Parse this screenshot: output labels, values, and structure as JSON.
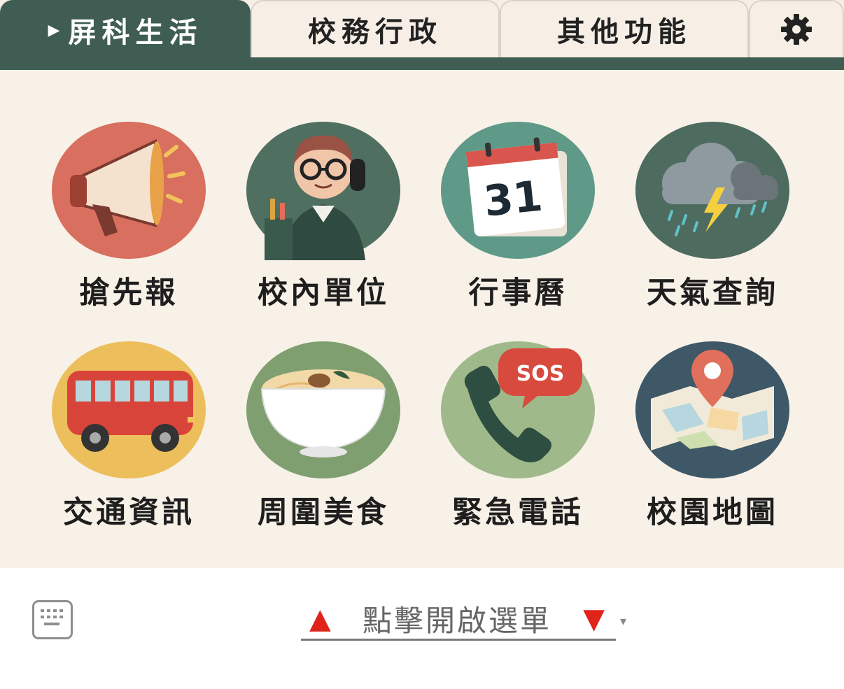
{
  "tabs": [
    {
      "label": "屏科生活",
      "active": true
    },
    {
      "label": "校務行政",
      "active": false
    },
    {
      "label": "其他功能",
      "active": false
    }
  ],
  "settings_icon": "gear-icon",
  "grid": [
    {
      "label": "搶先報",
      "icon": "megaphone-icon",
      "bg": "#d86f5f"
    },
    {
      "label": "校內單位",
      "icon": "receptionist-icon",
      "bg": "#4f6f60"
    },
    {
      "label": "行事曆",
      "icon": "calendar-icon",
      "bg": "#5f9a88"
    },
    {
      "label": "天氣查詢",
      "icon": "storm-cloud-icon",
      "bg": "#4e6b60"
    },
    {
      "label": "交通資訊",
      "icon": "bus-icon",
      "bg": "#ecbe5c"
    },
    {
      "label": "周圍美食",
      "icon": "noodle-bowl-icon",
      "bg": "#7f9f70"
    },
    {
      "label": "緊急電話",
      "icon": "sos-phone-icon",
      "bg": "#9fb98a"
    },
    {
      "label": "校園地圖",
      "icon": "map-pin-icon",
      "bg": "#3f5867"
    }
  ],
  "calendar_number": "31",
  "sos_text": "SOS",
  "menu": {
    "label": "點擊開啟選單",
    "up_arrow": "▲",
    "down_arrow": "▼",
    "caret": "▾"
  },
  "colors": {
    "accent": "#3f5d52",
    "panel_bg": "#f8f1e8"
  }
}
